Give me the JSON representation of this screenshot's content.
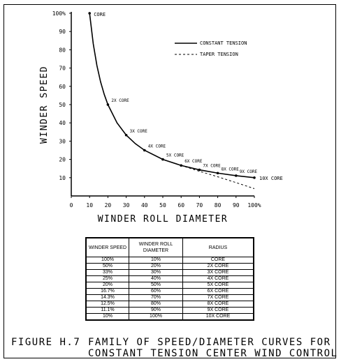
{
  "chart_data": {
    "type": "line",
    "xlabel": "WINDER ROLL DIAMETER",
    "ylabel": "WINDER SPEED",
    "x_ticks": [
      "0",
      "10",
      "20",
      "30",
      "40",
      "50",
      "60",
      "70",
      "80",
      "90",
      "100%"
    ],
    "y_ticks": [
      "10",
      "20",
      "30",
      "40",
      "50",
      "60",
      "70",
      "80",
      "90",
      "100%"
    ],
    "xlim": [
      0,
      100
    ],
    "ylim": [
      0,
      100
    ],
    "legend_position": "top-right",
    "series": [
      {
        "name": "CONSTANT TENSION",
        "style": "solid",
        "x": [
          10,
          12,
          14,
          16,
          18,
          20,
          25,
          30,
          35,
          40,
          50,
          60,
          70,
          80,
          90,
          100
        ],
        "y": [
          100,
          83.3,
          71.4,
          62.5,
          55.6,
          50,
          40,
          33.3,
          28.6,
          25,
          20,
          16.7,
          14.3,
          12.5,
          11.1,
          10
        ]
      },
      {
        "name": "TAPER TENSION",
        "style": "dashed",
        "x": [
          60,
          70,
          80,
          90,
          100
        ],
        "y": [
          16.7,
          13.5,
          10.5,
          7.3,
          4
        ]
      }
    ],
    "point_labels": [
      {
        "x": 10,
        "y": 100,
        "text": "CORE"
      },
      {
        "x": 20,
        "y": 50,
        "text": "2X CORE"
      },
      {
        "x": 30,
        "y": 33.3,
        "text": "3X CORE"
      },
      {
        "x": 40,
        "y": 25,
        "text": "4X CORE"
      },
      {
        "x": 50,
        "y": 20,
        "text": "5X CORE"
      },
      {
        "x": 60,
        "y": 16.7,
        "text": "6X CORE"
      },
      {
        "x": 70,
        "y": 14.3,
        "text": "7X CORE"
      },
      {
        "x": 80,
        "y": 12.5,
        "text": "8X CORE"
      },
      {
        "x": 90,
        "y": 11.1,
        "text": "9X CORE"
      },
      {
        "x": 100,
        "y": 10,
        "text": "10X CORE"
      }
    ]
  },
  "table": {
    "headers": [
      "WINDER SPEED",
      "WINDER ROLL DIAMETER",
      "RADIUS"
    ],
    "rows": [
      [
        "100%",
        "10%",
        "CORE"
      ],
      [
        "50%",
        "20%",
        "2X CORE"
      ],
      [
        "33%",
        "30%",
        "3X CORE"
      ],
      [
        "25%",
        "40%",
        "4X CORE"
      ],
      [
        "20%",
        "50%",
        "5X CORE"
      ],
      [
        "16.7%",
        "60%",
        "6X CORE"
      ],
      [
        "14.3%",
        "70%",
        "7X CORE"
      ],
      [
        "12.5%",
        "80%",
        "8X CORE"
      ],
      [
        "11.1%",
        "90%",
        "9X CORE"
      ],
      [
        "10%",
        "100%",
        "10X CORE"
      ]
    ]
  },
  "caption": {
    "label": "FIGURE H.7",
    "line1": "FAMILY OF SPEED/DIAMETER CURVES FOR",
    "line2": "CONSTANT TENSION CENTER WIND CONTROL"
  }
}
